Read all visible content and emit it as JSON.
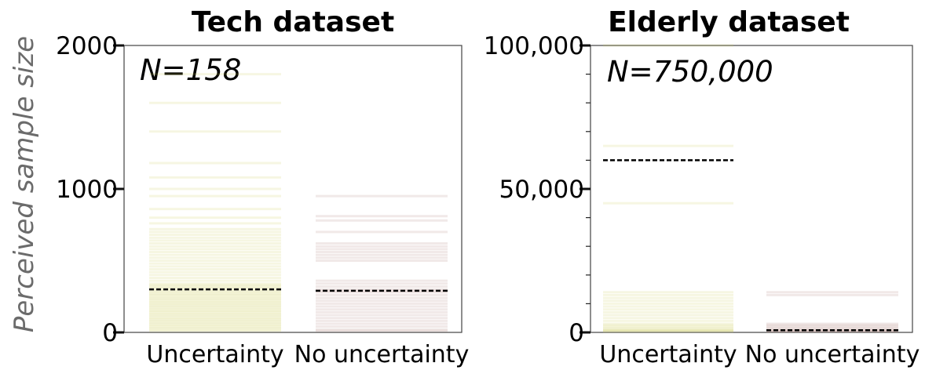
{
  "y_axis_label": "Perceived sample size",
  "chart_data": [
    {
      "type": "strip",
      "title": "Tech dataset",
      "annotation": "N=158",
      "ylabel": "Perceived sample size",
      "ylim": [
        0,
        2000
      ],
      "yticks": [
        "0",
        "1000",
        "2000"
      ],
      "ytick_values": [
        0,
        1000,
        2000
      ],
      "minor_ticks": [],
      "categories": [
        "Uncertainty",
        "No uncertainty"
      ],
      "series": [
        {
          "category": "Uncertainty",
          "color": "#c6c94a",
          "median": 300,
          "values": [
            1800,
            1600,
            1400,
            1180,
            1080,
            1000,
            950,
            860,
            800,
            760,
            720,
            700,
            680,
            660,
            640,
            620,
            600,
            580,
            560,
            540,
            520,
            500,
            480,
            460,
            440,
            420,
            400,
            380,
            360,
            340,
            330,
            320,
            310,
            300,
            290,
            280,
            270,
            260,
            250,
            240,
            230,
            220,
            210,
            200,
            190,
            180,
            170,
            160,
            150,
            140,
            130,
            120,
            110,
            100,
            90,
            80,
            70,
            60,
            50,
            40,
            30,
            20,
            10
          ]
        },
        {
          "category": "No uncertainty",
          "color": "#a8766d",
          "median": 290,
          "values": [
            950,
            810,
            780,
            700,
            620,
            600,
            580,
            560,
            540,
            520,
            500,
            360,
            340,
            320,
            300,
            290,
            280,
            260,
            240,
            220,
            200,
            180,
            160,
            140,
            120,
            100,
            80,
            60,
            40,
            20,
            10
          ]
        }
      ]
    },
    {
      "type": "strip",
      "title": "Elderly dataset",
      "annotation": "N=750,000",
      "ylabel": "",
      "ylim": [
        0,
        100000
      ],
      "yticks": [
        "0",
        "50,000",
        "100,000"
      ],
      "ytick_values": [
        0,
        50000,
        100000
      ],
      "minor_ticks": [
        10000,
        20000,
        30000,
        40000,
        60000,
        70000,
        80000,
        90000
      ],
      "categories": [
        "Uncertainty",
        "No uncertainty"
      ],
      "series": [
        {
          "category": "Uncertainty",
          "color": "#c6c94a",
          "median": 60000,
          "values": [
            100000,
            65000,
            45000,
            14000,
            13000,
            12000,
            11000,
            10000,
            9000,
            8000,
            7000,
            6000,
            5000,
            4000,
            3000,
            2500,
            2000,
            1500,
            1000,
            800,
            500,
            300
          ]
        },
        {
          "category": "No uncertainty",
          "color": "#a8766d",
          "median": 750,
          "values": [
            14000,
            13000,
            3000,
            2500,
            2000,
            1500,
            1000,
            750,
            500,
            300
          ]
        }
      ]
    }
  ]
}
